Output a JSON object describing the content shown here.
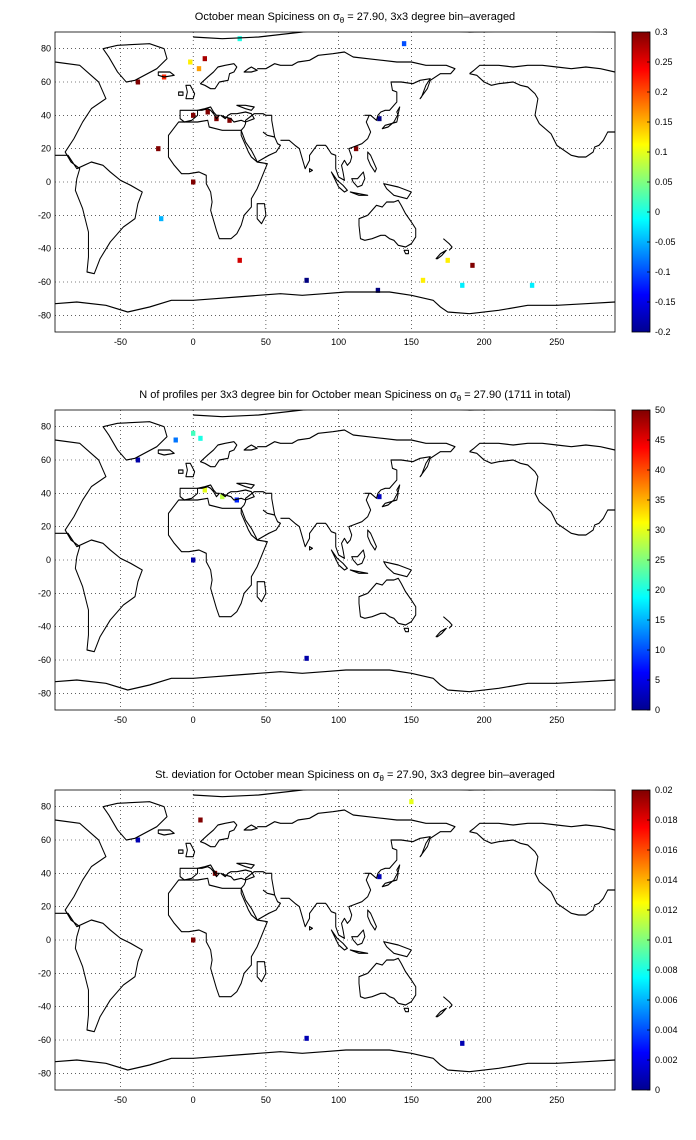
{
  "panels": [
    {
      "id": "mean",
      "title_prefix": "October mean Spiciness on ",
      "title_sigma": "σ",
      "title_sub": "θ",
      "title_suffix": " = 27.90, 3x3 degree bin–averaged",
      "colorbar_ticks": [
        "0.3",
        "0.25",
        "0.2",
        "0.15",
        "0.1",
        "0.05",
        "0",
        "-0.05",
        "-0.1",
        "-0.15",
        "-0.2"
      ],
      "colorbar_range": [
        -0.2,
        0.3
      ]
    },
    {
      "id": "count",
      "title_prefix": "N of profiles per 3x3 degree bin for October mean Spiciness on ",
      "title_sigma": "σ",
      "title_sub": "θ",
      "title_suffix": " = 27.90 (1711 in total)",
      "colorbar_ticks": [
        "50",
        "45",
        "40",
        "35",
        "30",
        "25",
        "20",
        "15",
        "10",
        "5",
        "0"
      ],
      "colorbar_range": [
        0,
        50
      ]
    },
    {
      "id": "std",
      "title_prefix": "St. deviation for October mean Spiciness on ",
      "title_sigma": "σ",
      "title_sub": "θ",
      "title_suffix": " = 27.90, 3x3 degree bin–averaged",
      "colorbar_ticks": [
        "0.02",
        "0.018",
        "0.016",
        "0.014",
        "0.012",
        "0.01",
        "0.008",
        "0.006",
        "0.004",
        "0.002",
        "0"
      ],
      "colorbar_range": [
        0,
        0.02
      ]
    }
  ],
  "axes": {
    "xticks": [
      "-50",
      "0",
      "50",
      "100",
      "150",
      "200",
      "250"
    ],
    "yticks": [
      "80",
      "60",
      "40",
      "20",
      "0",
      "-20",
      "-40",
      "-60",
      "-80"
    ],
    "xlim": [
      -95,
      290
    ],
    "ylim": [
      -90,
      90
    ],
    "grid": "dotted"
  },
  "chart_data": [
    {
      "type": "heatmap",
      "title": "October mean Spiciness on σθ = 27.90, 3x3 degree bin–averaged",
      "xlim": [
        -95,
        290
      ],
      "ylim": [
        -90,
        90
      ],
      "clim": [
        -0.2,
        0.3
      ],
      "cells": [
        {
          "lon": 10,
          "lat": 42,
          "value": 0.3
        },
        {
          "lon": 16,
          "lat": 38,
          "value": 0.3
        },
        {
          "lon": 25,
          "lat": 37,
          "value": 0.3
        },
        {
          "lon": 0,
          "lat": 40,
          "value": 0.3
        },
        {
          "lon": -2,
          "lat": 72,
          "value": 0.12
        },
        {
          "lon": 4,
          "lat": 68,
          "value": 0.16
        },
        {
          "lon": 8,
          "lat": 74,
          "value": 0.28
        },
        {
          "lon": -20,
          "lat": 63,
          "value": 0.22
        },
        {
          "lon": -38,
          "lat": 60,
          "value": 0.3
        },
        {
          "lon": -24,
          "lat": 20,
          "value": 0.3
        },
        {
          "lon": 0,
          "lat": 0,
          "value": 0.3
        },
        {
          "lon": -22,
          "lat": -22,
          "value": -0.05
        },
        {
          "lon": 32,
          "lat": -47,
          "value": 0.26
        },
        {
          "lon": 78,
          "lat": -59,
          "value": -0.2
        },
        {
          "lon": 127,
          "lat": -65,
          "value": -0.2
        },
        {
          "lon": 158,
          "lat": -59,
          "value": 0.12
        },
        {
          "lon": 185,
          "lat": -62,
          "value": -0.02
        },
        {
          "lon": 233,
          "lat": -62,
          "value": -0.02
        },
        {
          "lon": 192,
          "lat": -50,
          "value": 0.3
        },
        {
          "lon": 175,
          "lat": -47,
          "value": 0.12
        },
        {
          "lon": 128,
          "lat": 38,
          "value": -0.2
        },
        {
          "lon": 112,
          "lat": 20,
          "value": 0.3
        },
        {
          "lon": 145,
          "lat": 83,
          "value": -0.1
        },
        {
          "lon": 32,
          "lat": 86,
          "value": 0.0
        }
      ]
    },
    {
      "type": "heatmap",
      "title": "N of profiles per 3x3 degree bin for October mean Spiciness on σθ = 27.90 (1711 in total)",
      "xlim": [
        -95,
        290
      ],
      "ylim": [
        -90,
        90
      ],
      "clim": [
        0,
        50
      ],
      "cells": [
        {
          "lon": 0,
          "lat": 76,
          "value": 22
        },
        {
          "lon": 5,
          "lat": 73,
          "value": 20
        },
        {
          "lon": -12,
          "lat": 72,
          "value": 12
        },
        {
          "lon": 8,
          "lat": 42,
          "value": 30
        },
        {
          "lon": 20,
          "lat": 38,
          "value": 28
        },
        {
          "lon": 30,
          "lat": 36,
          "value": 8
        },
        {
          "lon": -38,
          "lat": 60,
          "value": 2
        },
        {
          "lon": 0,
          "lat": 0,
          "value": 2
        },
        {
          "lon": 78,
          "lat": -59,
          "value": 2
        },
        {
          "lon": 128,
          "lat": 38,
          "value": 3
        }
      ]
    },
    {
      "type": "heatmap",
      "title": "St. deviation for October mean Spiciness on σθ = 27.90, 3x3 degree bin–averaged",
      "xlim": [
        -95,
        290
      ],
      "ylim": [
        -90,
        90
      ],
      "clim": [
        0,
        0.02
      ],
      "cells": [
        {
          "lon": 5,
          "lat": 72,
          "value": 0.02
        },
        {
          "lon": 15,
          "lat": 40,
          "value": 0.02
        },
        {
          "lon": 0,
          "lat": 0,
          "value": 0.02
        },
        {
          "lon": -38,
          "lat": 60,
          "value": 0.001
        },
        {
          "lon": 150,
          "lat": 83,
          "value": 0.012
        },
        {
          "lon": 128,
          "lat": 38,
          "value": 0.001
        },
        {
          "lon": 78,
          "lat": -59,
          "value": 0.001
        },
        {
          "lon": 185,
          "lat": -62,
          "value": 0.001
        }
      ]
    }
  ]
}
